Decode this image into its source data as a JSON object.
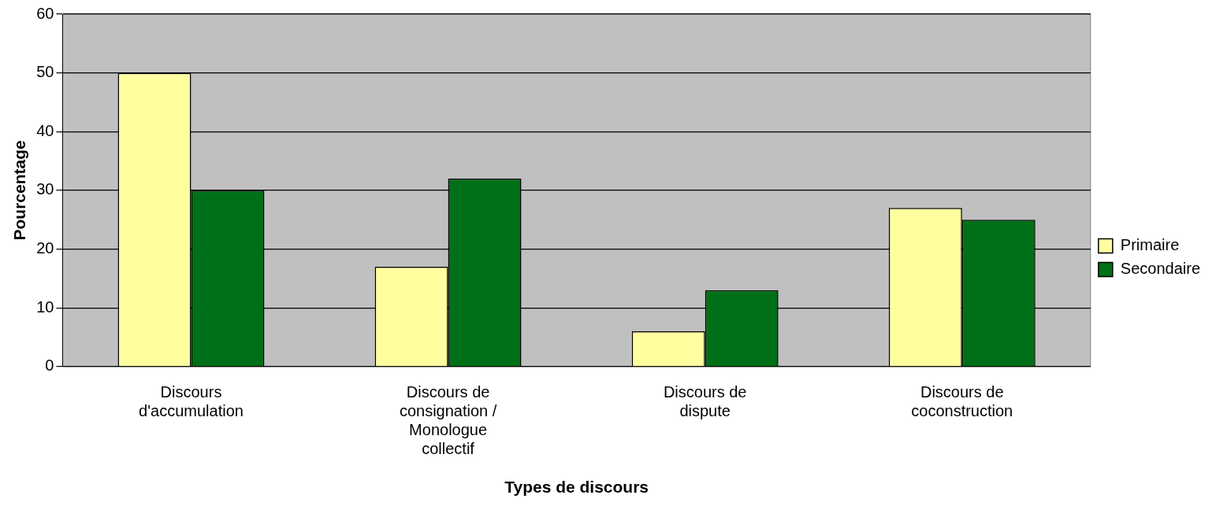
{
  "chart_data": {
    "type": "bar",
    "xlabel": "Types de discours",
    "ylabel": "Pourcentage",
    "categories": [
      "Discours d'accumulation",
      "Discours de consignation / Monologue collectif",
      "Discours de dispute",
      "Discours de coconstruction"
    ],
    "series": [
      {
        "name": "Primaire",
        "color": "#ffffa0",
        "values": [
          50,
          17,
          6,
          27
        ]
      },
      {
        "name": "Secondaire",
        "color": "#007018",
        "values": [
          30,
          32,
          13,
          25
        ]
      }
    ],
    "ylim": [
      0,
      60
    ],
    "yticks": [
      0,
      10,
      20,
      30,
      40,
      50,
      60
    ],
    "grid": "y",
    "legend": "right"
  }
}
